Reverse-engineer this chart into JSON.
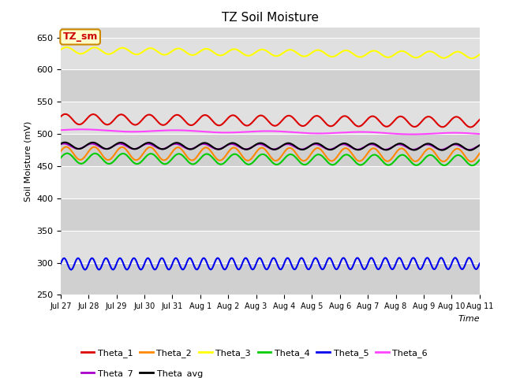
{
  "title": "TZ Soil Moisture",
  "xlabel": "Time",
  "ylabel": "Soil Moisture (mV)",
  "ylim": [
    250,
    665
  ],
  "yticks": [
    250,
    300,
    350,
    400,
    450,
    500,
    550,
    600,
    650
  ],
  "plot_bg": "#dcdcdc",
  "fig_bg": "#ffffff",
  "legend_label": "TZ_sm",
  "date_labels": [
    "Jul 27",
    "Jul 28",
    "Jul 29",
    "Jul 30",
    "Jul 31",
    "Aug 1",
    "Aug 2",
    "Aug 3",
    "Aug 4",
    "Aug 5",
    "Aug 6",
    "Aug 7",
    "Aug 8",
    "Aug 9",
    "Aug 10",
    "Aug 11"
  ],
  "n_points": 480,
  "series_order": [
    "Theta_1",
    "Theta_2",
    "Theta_3",
    "Theta_4",
    "Theta_5",
    "Theta_6",
    "Theta_7",
    "Theta_avg"
  ],
  "series": {
    "Theta_1": {
      "color": "#dd0000",
      "base": 523,
      "amp": 8,
      "freq": 1.0,
      "phase": 0.5,
      "trend": -0.3
    },
    "Theta_2": {
      "color": "#ff8800",
      "base": 470,
      "amp": 10,
      "freq": 1.0,
      "phase": 0.3,
      "trend": -0.2
    },
    "Theta_3": {
      "color": "#ffff00",
      "base": 630,
      "amp": 5,
      "freq": 1.0,
      "phase": 0.2,
      "trend": -0.5
    },
    "Theta_4": {
      "color": "#00cc00",
      "base": 462,
      "amp": 8,
      "freq": 1.0,
      "phase": 0.1,
      "trend": -0.2
    },
    "Theta_5": {
      "color": "#0000ee",
      "base": 298,
      "amp": 9,
      "freq": 2.0,
      "phase": 0.0,
      "trend": 0.05
    },
    "Theta_6": {
      "color": "#ff44ff",
      "base": 506,
      "amp": 1.5,
      "freq": 0.3,
      "phase": 0.0,
      "trend": -0.4
    },
    "Theta_7": {
      "color": "#aa00cc",
      "base": 481,
      "amp": 4,
      "freq": 1.0,
      "phase": 0.8,
      "trend": -0.1
    },
    "Theta_avg": {
      "color": "#000000",
      "base": 482,
      "amp": 5,
      "freq": 1.0,
      "phase": 0.6,
      "trend": -0.15
    }
  }
}
